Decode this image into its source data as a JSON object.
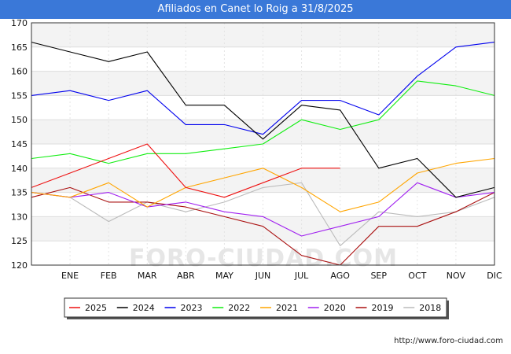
{
  "chart_data": {
    "type": "line",
    "title": "Afiliados en Canet lo Roig a 31/8/2025",
    "xlabel": "",
    "ylabel": "",
    "ylim": [
      120,
      170
    ],
    "yticks": [
      120,
      125,
      130,
      135,
      140,
      145,
      150,
      155,
      160,
      165,
      170
    ],
    "categories": [
      "",
      "ENE",
      "FEB",
      "MAR",
      "ABR",
      "MAY",
      "JUN",
      "JUL",
      "AGO",
      "SEP",
      "OCT",
      "NOV",
      "DIC"
    ],
    "legend_position": "bottom-center",
    "series": [
      {
        "name": "2025",
        "color": "#ee1111",
        "values": [
          136,
          139,
          142,
          145,
          136,
          134,
          137,
          140,
          140,
          null,
          null,
          null,
          null
        ]
      },
      {
        "name": "2024",
        "color": "#000000",
        "values": [
          166,
          164,
          162,
          164,
          153,
          153,
          146,
          153,
          152,
          140,
          142,
          134,
          136
        ]
      },
      {
        "name": "2023",
        "color": "#0000ee",
        "values": [
          155,
          156,
          154,
          156,
          149,
          149,
          147,
          154,
          154,
          151,
          159,
          165,
          166
        ]
      },
      {
        "name": "2022",
        "color": "#11ee11",
        "values": [
          142,
          143,
          141,
          143,
          143,
          144,
          145,
          150,
          148,
          150,
          158,
          157,
          155
        ]
      },
      {
        "name": "2021",
        "color": "#ffa500",
        "values": [
          135,
          134,
          137,
          132,
          136,
          138,
          140,
          136,
          131,
          133,
          139,
          141,
          142
        ]
      },
      {
        "name": "2020",
        "color": "#a020f0",
        "values": [
          135,
          134,
          135,
          132,
          133,
          131,
          130,
          126,
          128,
          130,
          137,
          134,
          135
        ]
      },
      {
        "name": "2019",
        "color": "#aa1111",
        "values": [
          134,
          136,
          133,
          133,
          132,
          130,
          128,
          122,
          120,
          128,
          128,
          131,
          135
        ]
      },
      {
        "name": "2018",
        "color": "#bbbbbb",
        "values": [
          135,
          134,
          129,
          133,
          131,
          133,
          136,
          137,
          124,
          131,
          130,
          131,
          134
        ]
      }
    ]
  },
  "watermark": "FORO-CIUDAD.COM",
  "source": "http://www.foro-ciudad.com"
}
